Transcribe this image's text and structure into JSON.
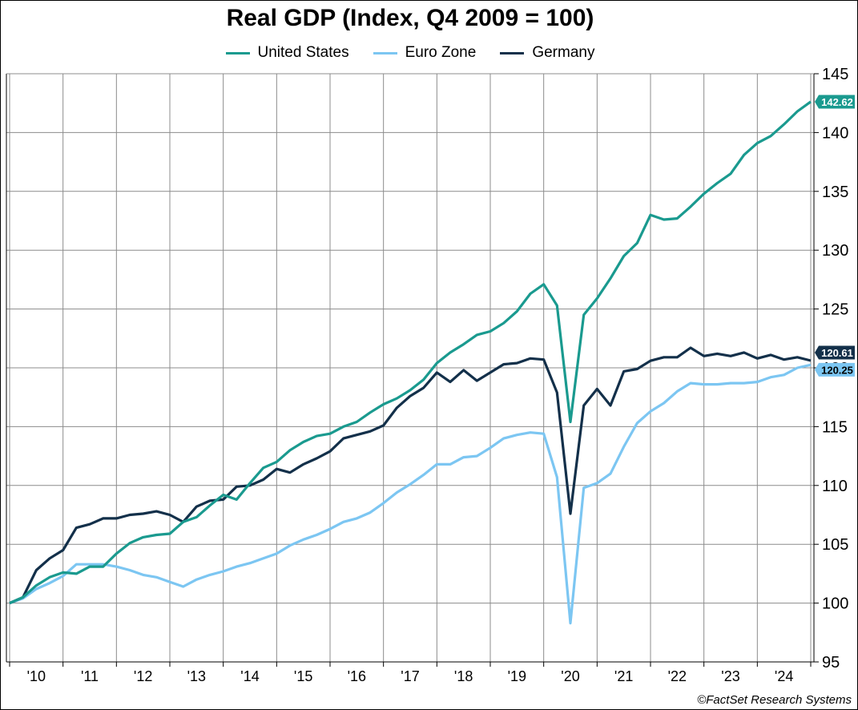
{
  "chart_data": {
    "type": "line",
    "title": "Real GDP (Index, Q4 2009 = 100)",
    "source": "©FactSet Research Systems",
    "ylim": [
      95,
      145
    ],
    "y_ticks": [
      95,
      100,
      105,
      110,
      115,
      120,
      125,
      130,
      135,
      140,
      145
    ],
    "y_axis_side": "right",
    "x_tick_labels": [
      "'10",
      "'11",
      "'12",
      "'13",
      "'14",
      "'15",
      "'16",
      "'17",
      "'18",
      "'19",
      "'20",
      "'21",
      "'22",
      "'23",
      "'24"
    ],
    "x": [
      "Q4 2009",
      "Q1 2010",
      "Q2 2010",
      "Q3 2010",
      "Q4 2010",
      "Q1 2011",
      "Q2 2011",
      "Q3 2011",
      "Q4 2011",
      "Q1 2012",
      "Q2 2012",
      "Q3 2012",
      "Q4 2012",
      "Q1 2013",
      "Q2 2013",
      "Q3 2013",
      "Q4 2013",
      "Q1 2014",
      "Q2 2014",
      "Q3 2014",
      "Q4 2014",
      "Q1 2015",
      "Q2 2015",
      "Q3 2015",
      "Q4 2015",
      "Q1 2016",
      "Q2 2016",
      "Q3 2016",
      "Q4 2016",
      "Q1 2017",
      "Q2 2017",
      "Q3 2017",
      "Q4 2017",
      "Q1 2018",
      "Q2 2018",
      "Q3 2018",
      "Q4 2018",
      "Q1 2019",
      "Q2 2019",
      "Q3 2019",
      "Q4 2019",
      "Q1 2020",
      "Q2 2020",
      "Q3 2020",
      "Q4 2020",
      "Q1 2021",
      "Q2 2021",
      "Q3 2021",
      "Q4 2021",
      "Q1 2022",
      "Q2 2022",
      "Q3 2022",
      "Q4 2022",
      "Q1 2023",
      "Q2 2023",
      "Q3 2023",
      "Q4 2023",
      "Q1 2024",
      "Q2 2024",
      "Q3 2024",
      "Q4 2024"
    ],
    "grid": true,
    "legend_position": "top-center",
    "series": [
      {
        "name": "United States",
        "color": "#1a9a8f",
        "end_label": "142.62",
        "values": [
          100,
          100.5,
          101.5,
          102.2,
          102.6,
          102.5,
          103.1,
          103.1,
          104.2,
          105.1,
          105.6,
          105.8,
          105.9,
          106.9,
          107.3,
          108.3,
          109.2,
          108.8,
          110.2,
          111.5,
          112.0,
          113.0,
          113.7,
          114.2,
          114.4,
          115.0,
          115.4,
          116.2,
          116.9,
          117.4,
          118.1,
          119.0,
          120.4,
          121.3,
          122.0,
          122.8,
          123.1,
          123.8,
          124.8,
          126.3,
          127.1,
          125.3,
          115.4,
          124.5,
          125.9,
          127.6,
          129.5,
          130.6,
          133.0,
          132.6,
          132.7,
          133.7,
          134.8,
          135.7,
          136.5,
          138.1,
          139.1,
          139.7,
          140.7,
          141.8,
          142.62
        ]
      },
      {
        "name": "Euro Zone",
        "color": "#7cc6f2",
        "end_label": "120.25",
        "values": [
          100,
          100.4,
          101.2,
          101.7,
          102.3,
          103.3,
          103.3,
          103.3,
          103.1,
          102.8,
          102.4,
          102.2,
          101.8,
          101.4,
          102.0,
          102.4,
          102.7,
          103.1,
          103.4,
          103.8,
          104.2,
          104.9,
          105.4,
          105.8,
          106.3,
          106.9,
          107.2,
          107.7,
          108.5,
          109.4,
          110.1,
          110.9,
          111.8,
          111.8,
          112.4,
          112.5,
          113.2,
          114.0,
          114.3,
          114.5,
          114.4,
          110.7,
          98.3,
          109.8,
          110.2,
          111.0,
          113.3,
          115.3,
          116.3,
          117.0,
          118.0,
          118.7,
          118.6,
          118.6,
          118.7,
          118.7,
          118.8,
          119.2,
          119.4,
          120.0,
          120.25
        ]
      },
      {
        "name": "Germany",
        "color": "#13304a",
        "end_label": "120.61",
        "values": [
          100,
          100.5,
          102.8,
          103.8,
          104.5,
          106.4,
          106.7,
          107.2,
          107.2,
          107.5,
          107.6,
          107.8,
          107.5,
          106.9,
          108.2,
          108.7,
          108.8,
          109.9,
          110.0,
          110.5,
          111.4,
          111.1,
          111.8,
          112.3,
          112.9,
          114.0,
          114.3,
          114.6,
          115.1,
          116.6,
          117.6,
          118.3,
          119.6,
          118.8,
          119.8,
          118.9,
          119.6,
          120.3,
          120.4,
          120.8,
          120.7,
          117.9,
          107.6,
          116.8,
          118.2,
          116.8,
          119.7,
          119.9,
          120.6,
          120.9,
          120.9,
          121.7,
          121.0,
          121.2,
          121.0,
          121.3,
          120.8,
          121.1,
          120.7,
          120.9,
          120.61
        ]
      }
    ]
  }
}
